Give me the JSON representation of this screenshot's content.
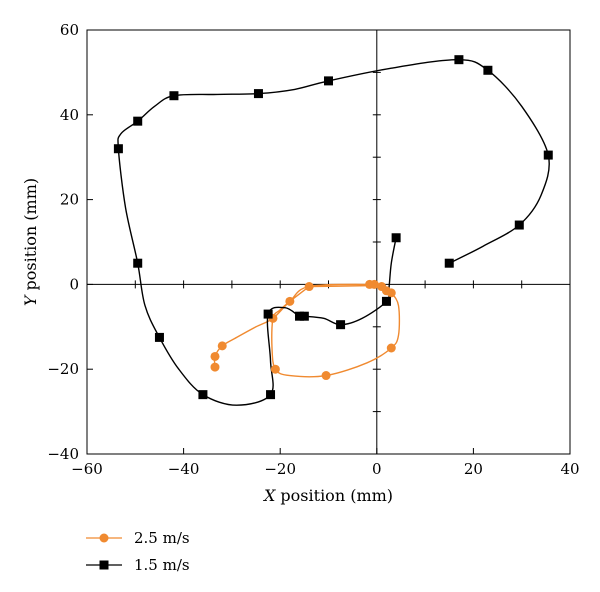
{
  "chart_data": {
    "type": "line",
    "title": "",
    "xlabel": "X position (mm)",
    "xlabel_var": "X",
    "xlabel_rest": " position (mm)",
    "ylabel": "Y position (mm)",
    "ylabel_var": "Y",
    "ylabel_rest": " position (mm)",
    "xlim": [
      -60,
      40
    ],
    "ylim": [
      -40,
      60
    ],
    "xticks": [
      -60,
      -40,
      -20,
      0,
      20,
      40
    ],
    "yticks": [
      -40,
      -20,
      0,
      20,
      40,
      60
    ],
    "xtick_labels": [
      "−60",
      "−40",
      "−20",
      "0",
      "20",
      "40"
    ],
    "ytick_labels": [
      "−40",
      "−20",
      "0",
      "20",
      "40",
      "60"
    ],
    "grid": false,
    "zero_axes": true,
    "legend_position": "bottom-left outside",
    "series": [
      {
        "name": "2.5 m/s",
        "color": "#F08A30",
        "marker": "circle",
        "points": [
          [
            -1.5,
            0
          ],
          [
            -0.5,
            0
          ],
          [
            1,
            -0.5
          ],
          [
            2,
            -1.5
          ],
          [
            3,
            -2
          ],
          [
            3,
            -15
          ],
          [
            -10.5,
            -21.5
          ],
          [
            -21,
            -20
          ],
          [
            -21.5,
            -8
          ],
          [
            -18,
            -4
          ],
          [
            -14,
            -0.5
          ],
          [
            -32,
            -14.5
          ],
          [
            -33.5,
            -17
          ],
          [
            -33.5,
            -19.5
          ]
        ],
        "curve_points": [
          [
            -1.5,
            0
          ],
          [
            -0.5,
            0
          ],
          [
            1,
            -0.5
          ],
          [
            2,
            -1.5
          ],
          [
            3,
            -2
          ],
          [
            4.5,
            -5
          ],
          [
            4.5,
            -12
          ],
          [
            3,
            -15
          ],
          [
            -2,
            -18.5
          ],
          [
            -10.5,
            -21.5
          ],
          [
            -18,
            -21.5
          ],
          [
            -21,
            -20
          ],
          [
            -21.7,
            -15
          ],
          [
            -21.5,
            -8
          ],
          [
            -20,
            -6
          ],
          [
            -18,
            -4
          ],
          [
            -14,
            -0.5
          ],
          [
            -14,
            -0.5
          ],
          [
            -2,
            -0.3
          ],
          [
            -1.5,
            0
          ],
          [
            -14,
            -0.5
          ],
          [
            -18,
            -4
          ],
          [
            -21.5,
            -8
          ],
          [
            -25,
            -10
          ],
          [
            -29,
            -12.5
          ],
          [
            -32,
            -14.5
          ],
          [
            -33.5,
            -17
          ],
          [
            -33.5,
            -19.5
          ]
        ]
      },
      {
        "name": "1.5 m/s",
        "color": "#000000",
        "marker": "square",
        "points": [
          [
            15,
            5
          ],
          [
            29.5,
            14
          ],
          [
            35.5,
            30.5
          ],
          [
            23,
            50.5
          ],
          [
            17,
            53
          ],
          [
            -10,
            48
          ],
          [
            -24.5,
            45
          ],
          [
            -42,
            44.5
          ],
          [
            -49.5,
            38.5
          ],
          [
            -53.5,
            32
          ],
          [
            -49.5,
            5
          ],
          [
            -45,
            -12.5
          ],
          [
            -36,
            -26
          ],
          [
            -22,
            -26
          ],
          [
            -22.5,
            -7
          ],
          [
            -16,
            -7.5
          ],
          [
            -15,
            -7.5
          ],
          [
            -7.5,
            -9.5
          ],
          [
            2,
            -4
          ],
          [
            4,
            11
          ]
        ],
        "curve_points": [
          [
            15,
            5
          ],
          [
            22,
            9
          ],
          [
            29.5,
            14
          ],
          [
            34,
            21
          ],
          [
            35.5,
            30.5
          ],
          [
            30,
            42
          ],
          [
            23,
            50.5
          ],
          [
            17,
            53
          ],
          [
            3,
            51
          ],
          [
            -10,
            48
          ],
          [
            -17,
            46
          ],
          [
            -24.5,
            45
          ],
          [
            -33,
            44.8
          ],
          [
            -42,
            44.5
          ],
          [
            -46,
            42
          ],
          [
            -49.5,
            38.5
          ],
          [
            -53,
            35.5
          ],
          [
            -53.5,
            32
          ],
          [
            -52,
            18
          ],
          [
            -49.5,
            5
          ],
          [
            -48,
            -5
          ],
          [
            -45,
            -12.5
          ],
          [
            -41,
            -20
          ],
          [
            -36,
            -26
          ],
          [
            -29,
            -28.5
          ],
          [
            -22,
            -26
          ],
          [
            -22,
            -18
          ],
          [
            -22.5,
            -7
          ],
          [
            -19,
            -5.5
          ],
          [
            -16,
            -7.5
          ],
          [
            -15,
            -7.5
          ],
          [
            -11,
            -8
          ],
          [
            -7.5,
            -9.5
          ],
          [
            -3,
            -8
          ],
          [
            2,
            -4
          ],
          [
            2.5,
            -1
          ],
          [
            3,
            5
          ],
          [
            4,
            11
          ]
        ]
      }
    ]
  }
}
